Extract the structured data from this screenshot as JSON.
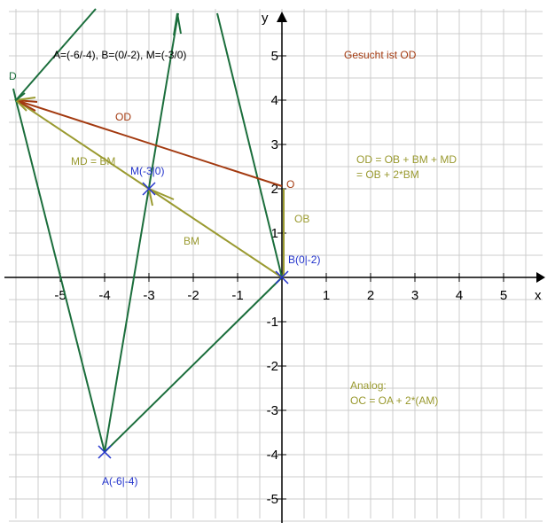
{
  "title_points": "A=(-6/-4),   B=(0/-2),   M=(-3/0)",
  "goal": "Gesucht ist OD",
  "formula": {
    "line1": "OD = OB + BM + MD",
    "line2": "= OB + 2*BM"
  },
  "analog": {
    "line1": "Analog:",
    "line2": "OC = OA + 2*(AM)"
  },
  "labels": {
    "od": "OD",
    "md": "MD = BM",
    "bm": "BM",
    "ob": "OB",
    "o": "O",
    "d": "D",
    "m": "M(-3|0)",
    "b": "B(0|-2)",
    "a": "A(-6|-4)"
  },
  "axes": {
    "x_label": "x",
    "y_label": "y",
    "x_ticks": [
      -5,
      -4,
      -3,
      -2,
      -1,
      1,
      2,
      3,
      4,
      5
    ],
    "y_ticks": [
      5,
      4,
      3,
      2,
      1,
      -1,
      -2,
      -3,
      -4,
      -5
    ]
  }
}
